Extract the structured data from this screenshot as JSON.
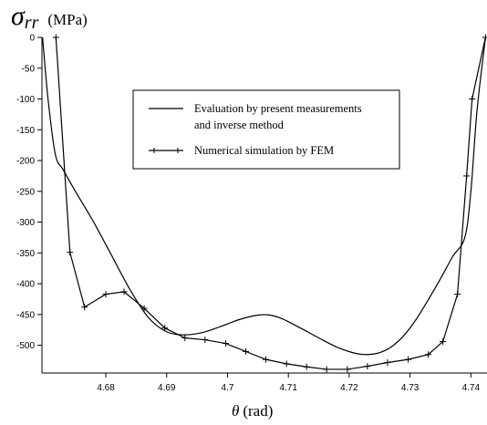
{
  "chart_data": {
    "type": "line",
    "ylabel": {
      "symbol": "σ",
      "subscript": "rr",
      "unit": "(MPa)"
    },
    "xlabel": {
      "symbol": "θ",
      "unit": "(rad)"
    },
    "xlim": [
      4.6695,
      4.7425
    ],
    "ylim": [
      -545,
      0
    ],
    "xticks": [
      {
        "value": 4.68,
        "label": "4.68"
      },
      {
        "value": 4.69,
        "label": "4.69"
      },
      {
        "value": 4.7,
        "label": "4.7"
      },
      {
        "value": 4.71,
        "label": "4.71"
      },
      {
        "value": 4.72,
        "label": "4.72"
      },
      {
        "value": 4.73,
        "label": "4.73"
      },
      {
        "value": 4.74,
        "label": "4.74"
      }
    ],
    "yticks": [
      {
        "value": 0,
        "label": "0"
      },
      {
        "value": -50,
        "label": "-50"
      },
      {
        "value": -100,
        "label": "-100"
      },
      {
        "value": -150,
        "label": "-150"
      },
      {
        "value": -200,
        "label": "-200"
      },
      {
        "value": -250,
        "label": "-250"
      },
      {
        "value": -300,
        "label": "-300"
      },
      {
        "value": -350,
        "label": "-350"
      },
      {
        "value": -400,
        "label": "-400"
      },
      {
        "value": -450,
        "label": "-450"
      },
      {
        "value": -500,
        "label": "-500"
      }
    ],
    "legend": {
      "position": "top-center"
    },
    "series": [
      {
        "name": "Evaluation by present measurements\nand inverse method",
        "name_lines": [
          "Evaluation by present measurements",
          "and inverse method"
        ],
        "style": "line",
        "x": [
          4.6696,
          4.6705,
          4.6717,
          4.673,
          4.675,
          4.678,
          4.681,
          4.684,
          4.687,
          4.69,
          4.693,
          4.696,
          4.699,
          4.702,
          4.705,
          4.707,
          4.709,
          4.712,
          4.715,
          4.718,
          4.721,
          4.723,
          4.725,
          4.727,
          4.729,
          4.731,
          4.733,
          4.735,
          4.737,
          4.739,
          4.74,
          4.741,
          4.7424
        ],
        "y": [
          0,
          -100,
          -190,
          -215,
          -250,
          -300,
          -355,
          -410,
          -455,
          -478,
          -483,
          -479,
          -469,
          -458,
          -451,
          -451,
          -457,
          -472,
          -488,
          -503,
          -513,
          -515,
          -512,
          -502,
          -484,
          -458,
          -426,
          -392,
          -356,
          -325,
          -250,
          -120,
          0
        ]
      },
      {
        "name": "Numerical simulation by FEM",
        "style": "line-marker",
        "marker": "plus",
        "x": [
          4.6718,
          4.6741,
          4.6765,
          4.68,
          4.683,
          4.6863,
          4.6897,
          4.693,
          4.6963,
          4.6997,
          4.703,
          4.7063,
          4.7097,
          4.713,
          4.7163,
          4.7197,
          4.723,
          4.7263,
          4.7297,
          4.733,
          4.7354,
          4.7378,
          4.7393,
          4.7402,
          4.7424
        ],
        "y": [
          0,
          -349,
          -438,
          -417,
          -413,
          -440,
          -472,
          -488,
          -491,
          -497,
          -510,
          -523,
          -530,
          -535,
          -539,
          -539,
          -534,
          -528,
          -523,
          -515,
          -494,
          -417,
          -225,
          -100,
          0
        ]
      }
    ]
  }
}
